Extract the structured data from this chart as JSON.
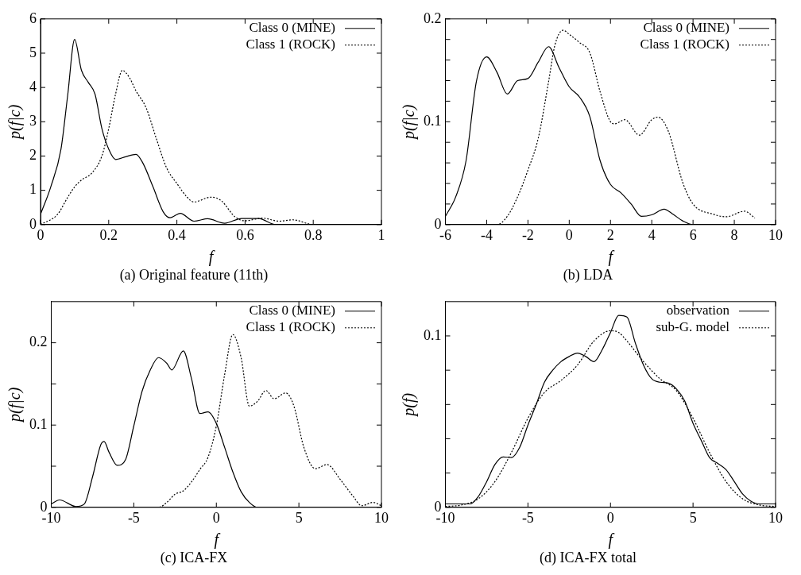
{
  "chart_data": [
    {
      "type": "line",
      "title": "(a) Original feature (11th)",
      "xlabel": "f",
      "ylabel": "p(f|c)",
      "xlim": [
        0,
        1
      ],
      "xticks": [
        0,
        0.2,
        0.4,
        0.6,
        0.8,
        1
      ],
      "ylim": [
        0,
        6
      ],
      "yticks": [
        0,
        1,
        2,
        3,
        4,
        5,
        6
      ],
      "grid": false,
      "legend": "top right",
      "marker": "none",
      "series": [
        {
          "name": "Class 0 (MINE)",
          "color": "#000000",
          "line_style": "solid",
          "x": [
            0,
            0.03,
            0.06,
            0.08,
            0.1,
            0.12,
            0.14,
            0.16,
            0.18,
            0.2,
            0.22,
            0.25,
            0.28,
            0.3,
            0.33,
            0.36,
            0.38,
            0.41,
            0.45,
            0.49,
            0.54,
            0.59,
            0.64,
            0.69,
            1
          ],
          "values": [
            0.3,
            1.1,
            2.2,
            3.8,
            5.4,
            4.5,
            4.15,
            3.8,
            2.8,
            2.2,
            1.9,
            1.98,
            2.05,
            1.8,
            1.1,
            0.37,
            0.2,
            0.33,
            0.1,
            0.17,
            0.04,
            0.18,
            0.18,
            0,
            0
          ]
        },
        {
          "name": "Class 1 (ROCK)",
          "color": "#000000",
          "line_style": "dotted",
          "x": [
            0,
            0.05,
            0.08,
            0.1,
            0.12,
            0.15,
            0.18,
            0.2,
            0.22,
            0.24,
            0.26,
            0.28,
            0.31,
            0.34,
            0.37,
            0.4,
            0.43,
            0.45,
            0.5,
            0.53,
            0.57,
            0.6,
            0.65,
            0.7,
            0.74,
            0.8,
            1
          ],
          "values": [
            0,
            0.3,
            0.8,
            1.1,
            1.3,
            1.5,
            2,
            2.8,
            3.8,
            4.5,
            4.3,
            3.9,
            3.4,
            2.5,
            1.65,
            1.2,
            0.8,
            0.66,
            0.8,
            0.7,
            0.23,
            0.11,
            0.19,
            0.1,
            0.14,
            0,
            0
          ]
        }
      ]
    },
    {
      "type": "line",
      "title": "(b) LDA",
      "xlabel": "f",
      "ylabel": "p(f|c)",
      "xlim": [
        -6,
        10
      ],
      "xticks": [
        -6,
        -4,
        -2,
        0,
        2,
        4,
        6,
        8,
        10
      ],
      "ylim": [
        0,
        0.2
      ],
      "yticks": [
        0,
        {
          "value": 0.02,
          "label": null
        },
        {
          "value": 0.04,
          "label": null
        },
        {
          "value": 0.06,
          "label": null
        },
        {
          "value": 0.08,
          "label": null
        },
        0.1,
        {
          "value": 0.12,
          "label": null
        },
        {
          "value": 0.14,
          "label": null
        },
        {
          "value": 0.16,
          "label": null
        },
        {
          "value": 0.18,
          "label": null
        },
        0.2
      ],
      "grid": false,
      "legend": "top right",
      "marker": "none",
      "series": [
        {
          "name": "Class 0 (MINE)",
          "color": "#000000",
          "line_style": "solid",
          "x": [
            -6,
            -5.5,
            -5,
            -4.5,
            -4,
            -3.5,
            -3,
            -2.5,
            -2,
            -1.5,
            -1,
            -0.5,
            0,
            0.5,
            1,
            1.5,
            2,
            2.5,
            3,
            3.5,
            4,
            4.6,
            5,
            5.5,
            6,
            10
          ],
          "values": [
            0.008,
            0.027,
            0.062,
            0.139,
            0.163,
            0.148,
            0.127,
            0.14,
            0.142,
            0.158,
            0.173,
            0.153,
            0.134,
            0.124,
            0.105,
            0.062,
            0.039,
            0.031,
            0.02,
            0.008,
            0.0095,
            0.015,
            0.0105,
            0.0036,
            0,
            0
          ]
        },
        {
          "name": "Class 1 (ROCK)",
          "color": "#000000",
          "line_style": "dotted",
          "x": [
            -6,
            -3.5,
            -3,
            -2.5,
            -2,
            -1.5,
            -1,
            -0.7,
            -0.3,
            0,
            0.5,
            1,
            1.5,
            2,
            2.2,
            2.7,
            3.4,
            4,
            4.3,
            4.8,
            5.5,
            6,
            7,
            7.6,
            8.5,
            9
          ],
          "values": [
            0,
            0,
            0.008,
            0.027,
            0.053,
            0.084,
            0.139,
            0.174,
            0.189,
            0.185,
            0.177,
            0.167,
            0.129,
            0.1,
            0.098,
            0.102,
            0.087,
            0.102,
            0.1045,
            0.091,
            0.041,
            0.02,
            0.01,
            0.0076,
            0.013,
            0.0064
          ]
        }
      ]
    },
    {
      "type": "line",
      "title": "(c) ICA-FX",
      "xlabel": "f",
      "ylabel": "p(f|c)",
      "xlim": [
        -10,
        10
      ],
      "xticks": [
        -10,
        -5,
        0,
        5,
        10
      ],
      "ylim": [
        0,
        0.25
      ],
      "yticks": [
        0,
        {
          "value": 0.05,
          "label": null
        },
        0.1,
        {
          "value": 0.15,
          "label": null
        },
        0.2
      ],
      "grid": false,
      "legend": "top right",
      "marker": "none",
      "series": [
        {
          "name": "Class 0 (MINE)",
          "color": "#000000",
          "line_style": "solid",
          "x": [
            -10,
            -9.5,
            -8.5,
            -8,
            -7.5,
            -7,
            -6.8,
            -6.5,
            -6,
            -5.5,
            -5,
            -4.5,
            -4,
            -3.5,
            -3,
            -2.7,
            -2,
            -1.5,
            -1,
            -0.5,
            0,
            0.5,
            1,
            1.5,
            2,
            2.5,
            10
          ],
          "values": [
            0.004,
            0.009,
            0.001,
            0.004,
            0.037,
            0.076,
            0.08,
            0.067,
            0.051,
            0.058,
            0.099,
            0.141,
            0.167,
            0.182,
            0.175,
            0.167,
            0.19,
            0.156,
            0.114,
            0.116,
            0.102,
            0.073,
            0.043,
            0.019,
            0.006,
            0,
            0
          ]
        },
        {
          "name": "Class 1 (ROCK)",
          "color": "#000000",
          "line_style": "dotted",
          "x": [
            -10,
            -3.5,
            -3,
            -2.5,
            -2,
            -1.5,
            -1,
            -0.5,
            0,
            0.5,
            1,
            1.5,
            2,
            2.5,
            3,
            3.5,
            4.2,
            4.7,
            5.3,
            6,
            6.7,
            7.5,
            8.3,
            8.8,
            9.5,
            10
          ],
          "values": [
            0,
            0,
            0.006,
            0.016,
            0.02,
            0.031,
            0.046,
            0.061,
            0.099,
            0.161,
            0.21,
            0.182,
            0.123,
            0.129,
            0.142,
            0.132,
            0.139,
            0.123,
            0.073,
            0.047,
            0.052,
            0.034,
            0.013,
            0.002,
            0.006,
            0.002
          ]
        }
      ]
    },
    {
      "type": "line",
      "title": "(d) ICA-FX total",
      "xlabel": "f",
      "ylabel": "p(f)",
      "xlim": [
        -10,
        10
      ],
      "xticks": [
        -10,
        -5,
        0,
        5,
        10
      ],
      "ylim": [
        0,
        0.12
      ],
      "yticks": [
        0,
        {
          "value": 0.02,
          "label": null
        },
        {
          "value": 0.04,
          "label": null
        },
        {
          "value": 0.06,
          "label": null
        },
        {
          "value": 0.08,
          "label": null
        },
        0.1
      ],
      "grid": false,
      "legend": "top right",
      "marker": "none",
      "series": [
        {
          "name": "observation",
          "color": "#000000",
          "line_style": "solid",
          "x": [
            -10,
            -8.5,
            -8,
            -7.5,
            -7,
            -6.5,
            -6,
            -5.5,
            -5,
            -4.5,
            -4,
            -3.5,
            -3,
            -2.5,
            -2,
            -1.5,
            -1,
            -0.5,
            0,
            0.5,
            1,
            1.5,
            2,
            2.5,
            3,
            3.5,
            4,
            4.5,
            5,
            5.5,
            6,
            6.5,
            7,
            7.5,
            8,
            8.5,
            9,
            10
          ],
          "values": [
            0.002,
            0.002,
            0.0064,
            0.015,
            0.025,
            0.0294,
            0.029,
            0.035,
            0.048,
            0.06,
            0.073,
            0.08,
            0.085,
            0.088,
            0.09,
            0.088,
            0.085,
            0.092,
            0.102,
            0.112,
            0.111,
            0.096,
            0.083,
            0.075,
            0.073,
            0.0725,
            0.069,
            0.062,
            0.049,
            0.039,
            0.029,
            0.0256,
            0.022,
            0.015,
            0.0078,
            0.0036,
            0.002,
            0.002
          ]
        },
        {
          "name": "sub-G. model",
          "color": "#000000",
          "line_style": "dotted",
          "x": [
            -10,
            -9,
            -8,
            -7,
            -6,
            -5,
            -4,
            -3,
            -2,
            -1,
            0,
            0.5,
            1,
            2,
            3,
            4,
            5,
            6,
            7,
            8,
            9,
            10
          ],
          "values": [
            0.0005,
            0.0014,
            0.005,
            0.015,
            0.032,
            0.052,
            0.067,
            0.074,
            0.083,
            0.097,
            0.103,
            0.102,
            0.097,
            0.085,
            0.075,
            0.068,
            0.052,
            0.032,
            0.015,
            0.005,
            0.0014,
            0.0005
          ]
        }
      ]
    }
  ]
}
